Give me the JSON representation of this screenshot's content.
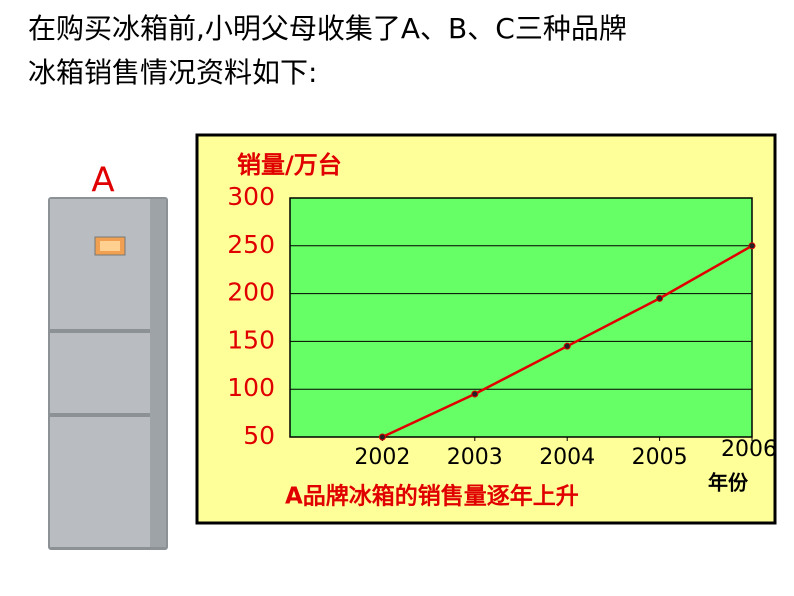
{
  "header": {
    "lines": [
      "在购买冰箱前,小明父母收集了A、B、C三种品牌",
      "冰箱销售情况资料如下:"
    ]
  },
  "image_label": "A",
  "chart_data": {
    "type": "line",
    "ylabel": "销量/万台",
    "xlabel": "年份",
    "annotation": "A品牌冰箱的销售量逐年上升",
    "x": [
      2002,
      2003,
      2004,
      2005,
      2006
    ],
    "series": [
      {
        "color": "#e00000",
        "marker_color": "#222222",
        "values": [
          50,
          95,
          145,
          195,
          250
        ]
      }
    ],
    "xlim": [
      2001,
      2006
    ],
    "xticks": [
      2002,
      2003,
      2004,
      2005,
      2006
    ],
    "ylim": [
      50,
      300
    ],
    "yticks": [
      50,
      100,
      150,
      200,
      250,
      300
    ],
    "grid": true,
    "background": "#ffff99",
    "plot_background": "#66ff66"
  }
}
